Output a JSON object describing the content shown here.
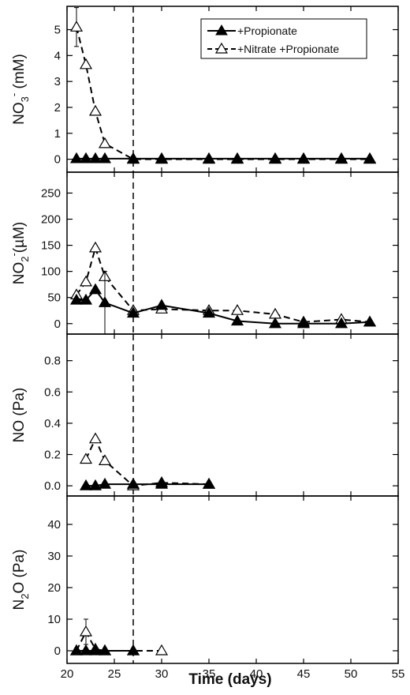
{
  "chart_data": [
    {
      "type": "line",
      "ylabel_main": "NO",
      "ylabel_sub": "3",
      "ylabel_sup": "-",
      "ylabel_unit": " (mM)",
      "xlim": [
        20,
        55
      ],
      "ylim": [
        -0.5,
        5.9
      ],
      "yticks": [
        0,
        1,
        2,
        3,
        4,
        5
      ],
      "legend": {
        "position": "top-right",
        "entries": [
          "+Propionate",
          "+Nitrate +Propionate"
        ]
      },
      "cutoff_line_x": 27,
      "series": [
        {
          "name": "+Propionate",
          "marker": "filled-triangle",
          "line": "solid",
          "x": [
            21,
            22,
            23,
            24,
            27,
            30,
            35,
            38,
            42,
            45,
            49,
            52
          ],
          "y": [
            0.02,
            0.02,
            0.02,
            0.02,
            0.02,
            0.02,
            0.02,
            0.02,
            0.02,
            0.02,
            0.02,
            0.02
          ]
        },
        {
          "name": "+Nitrate +Propionate",
          "marker": "open-triangle",
          "line": "dashed",
          "x": [
            21,
            22,
            23,
            24,
            27,
            30,
            35,
            38,
            42,
            45,
            49,
            52
          ],
          "y": [
            5.1,
            3.65,
            1.85,
            0.6,
            0.0,
            0.0,
            0.0,
            0.0,
            0.0,
            0.0,
            0.0,
            0.0
          ],
          "errors": [
            0.75,
            0,
            0,
            0,
            0,
            0,
            0,
            0,
            0,
            0,
            0,
            0
          ]
        }
      ]
    },
    {
      "type": "line",
      "ylabel_main": "NO",
      "ylabel_sub": "2",
      "ylabel_sup": "-",
      "ylabel_unit": "(µM)",
      "xlim": [
        20,
        55
      ],
      "ylim": [
        -20,
        290
      ],
      "yticks": [
        0,
        50,
        100,
        150,
        200,
        250
      ],
      "cutoff_line_x": 27,
      "series": [
        {
          "name": "+Propionate",
          "marker": "filled-triangle",
          "line": "solid",
          "x": [
            21,
            22,
            23,
            24,
            27,
            30,
            35,
            38,
            42,
            45,
            49,
            52
          ],
          "y": [
            45,
            45,
            65,
            40,
            20,
            35,
            20,
            5,
            0,
            0,
            0,
            3
          ],
          "errors": [
            0,
            0,
            0,
            60,
            0,
            0,
            0,
            0,
            0,
            0,
            0,
            0
          ]
        },
        {
          "name": "+Nitrate +Propionate",
          "marker": "open-triangle",
          "line": "dashed",
          "x": [
            21,
            22,
            23,
            24,
            27,
            30,
            35,
            38,
            42,
            45,
            49,
            52
          ],
          "y": [
            55,
            80,
            145,
            90,
            25,
            28,
            25,
            25,
            18,
            3,
            8,
            3
          ],
          "errors": [
            0,
            0,
            0,
            0,
            0,
            0,
            0,
            0,
            0,
            0,
            0,
            0
          ]
        }
      ]
    },
    {
      "type": "line",
      "ylabel_main": "NO",
      "ylabel_sub": "",
      "ylabel_sup": "",
      "ylabel_unit": " (Pa)",
      "xlim": [
        20,
        55
      ],
      "ylim": [
        -0.065,
        0.97
      ],
      "yticks": [
        0.0,
        0.2,
        0.4,
        0.6,
        0.8
      ],
      "yticklabels": [
        "0.0",
        "0.2",
        "0.4",
        "0.6",
        "0.8"
      ],
      "cutoff_line_x": 27,
      "series": [
        {
          "name": "+Propionate",
          "marker": "filled-triangle",
          "line": "solid",
          "x": [
            22,
            23,
            24,
            27,
            30,
            35
          ],
          "y": [
            0.0,
            0.0,
            0.01,
            0.01,
            0.01,
            0.01
          ]
        },
        {
          "name": "+Nitrate +Propionate",
          "marker": "open-triangle",
          "line": "dashed",
          "x": [
            22,
            23,
            24,
            27,
            30,
            35
          ],
          "y": [
            0.17,
            0.3,
            0.16,
            0.0,
            0.02,
            0.01
          ]
        }
      ]
    },
    {
      "type": "line",
      "ylabel_main": "N",
      "ylabel_sub": "2",
      "ylabel_after": "O (Pa)",
      "xlim": [
        20,
        55
      ],
      "ylim": [
        -4,
        49
      ],
      "yticks": [
        0,
        10,
        20,
        30,
        40
      ],
      "xticks": [
        20,
        25,
        30,
        35,
        40,
        45,
        50,
        55
      ],
      "xlabel": "Time (days)",
      "cutoff_line_x": 27,
      "series": [
        {
          "name": "+Propionate",
          "marker": "filled-triangle",
          "line": "solid",
          "x": [
            21,
            22,
            23,
            24,
            27
          ],
          "y": [
            0,
            0,
            0,
            0,
            0
          ]
        },
        {
          "name": "+Nitrate +Propionate",
          "marker": "open-triangle",
          "line": "dashed",
          "x": [
            21,
            22,
            23,
            24,
            27,
            30
          ],
          "y": [
            0,
            6,
            0.5,
            0,
            0,
            0
          ],
          "errors": [
            0,
            4,
            0,
            0,
            0,
            0
          ]
        }
      ]
    }
  ]
}
